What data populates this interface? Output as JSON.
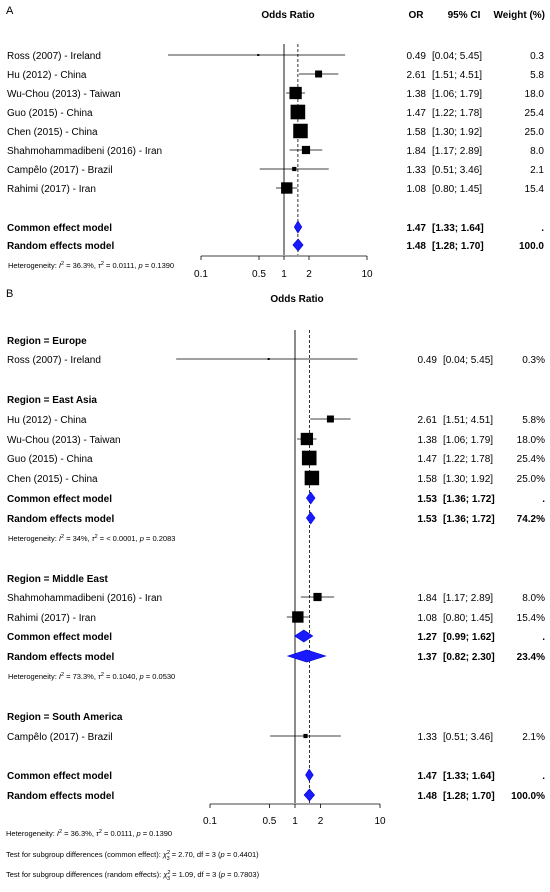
{
  "panel_a": {
    "letter": "A",
    "axis_title": "Odds Ratio",
    "col_headers": [
      "OR",
      "95% CI",
      "Weight (%)"
    ],
    "heterogeneity": [
      "Heterogeneity: ",
      "I",
      "2",
      " = 36.3%, ",
      "τ",
      "2",
      " = 0.0111, ",
      "p",
      " = 0.1390"
    ]
  },
  "panel_b": {
    "letter": "B",
    "axis_title": "Odds Ratio",
    "heterogeneity": [
      "Heterogeneity: ",
      "I",
      "2",
      " = 36.3%, ",
      "τ",
      "2",
      " = 0.0111, ",
      "p",
      " = 0.1390"
    ],
    "subgroup_tests": [
      [
        "Test for subgroup differences (common effect): ",
        "χ",
        "2",
        "3",
        " = 2.70, df = 3 (",
        "p",
        " = 0.4401)"
      ],
      [
        "Test for subgroup differences (random effects): ",
        "χ",
        "2",
        "3",
        " = 1.09, df = 3 (",
        "p",
        " = 0.7803)"
      ]
    ]
  },
  "chart_data": [
    {
      "type": "forest",
      "panel": "A",
      "xlabel": "Odds Ratio",
      "x_scale": "log",
      "xlim": [
        0.1,
        10
      ],
      "x_ticks": [
        "0.1",
        "0.5",
        "1",
        "2",
        "10"
      ],
      "reference_line": 1,
      "pooled_reference_line": 1.47,
      "studies": [
        {
          "label": "Ross (2007) - Ireland",
          "or": 0.49,
          "lower": 0.04,
          "upper": 5.45,
          "or_text": "0.49",
          "ci_text": "[0.04; 5.45]",
          "weight": 0.3,
          "weight_text": "0.3"
        },
        {
          "label": "Hu (2012) - China",
          "or": 2.61,
          "lower": 1.51,
          "upper": 4.51,
          "or_text": "2.61",
          "ci_text": "[1.51; 4.51]",
          "weight": 5.8,
          "weight_text": "5.8"
        },
        {
          "label": "Wu-Chou (2013) - Taiwan",
          "or": 1.38,
          "lower": 1.06,
          "upper": 1.79,
          "or_text": "1.38",
          "ci_text": "[1.06; 1.79]",
          "weight": 18.0,
          "weight_text": "18.0"
        },
        {
          "label": "Guo (2015) - China",
          "or": 1.47,
          "lower": 1.22,
          "upper": 1.78,
          "or_text": "1.47",
          "ci_text": "[1.22; 1.78]",
          "weight": 25.4,
          "weight_text": "25.4"
        },
        {
          "label": "Chen (2015) - China",
          "or": 1.58,
          "lower": 1.3,
          "upper": 1.92,
          "or_text": "1.58",
          "ci_text": "[1.30; 1.92]",
          "weight": 25.0,
          "weight_text": "25.0"
        },
        {
          "label": "Shahmohammadibeni (2016) - Iran",
          "or": 1.84,
          "lower": 1.17,
          "upper": 2.89,
          "or_text": "1.84",
          "ci_text": "[1.17; 2.89]",
          "weight": 8.0,
          "weight_text": "8.0"
        },
        {
          "label": "Campêlo (2017) - Brazil",
          "or": 1.33,
          "lower": 0.51,
          "upper": 3.46,
          "or_text": "1.33",
          "ci_text": "[0.51; 3.46]",
          "weight": 2.1,
          "weight_text": "2.1"
        },
        {
          "label": "Rahimi (2017) - Iran",
          "or": 1.08,
          "lower": 0.8,
          "upper": 1.45,
          "or_text": "1.08",
          "ci_text": "[0.80; 1.45]",
          "weight": 15.4,
          "weight_text": "15.4"
        }
      ],
      "summaries": [
        {
          "label": "Common effect model",
          "or": 1.47,
          "lower": 1.33,
          "upper": 1.64,
          "or_text": "1.47",
          "ci_text": "[1.33; 1.64]",
          "weight_text": "."
        },
        {
          "label": "Random effects model",
          "or": 1.48,
          "lower": 1.28,
          "upper": 1.7,
          "or_text": "1.48",
          "ci_text": "[1.28; 1.70]",
          "weight_text": "100.0"
        }
      ]
    },
    {
      "type": "forest",
      "panel": "B",
      "xlabel": "Odds Ratio",
      "x_scale": "log",
      "xlim": [
        0.1,
        10
      ],
      "x_ticks": [
        "0.1",
        "0.5",
        "1",
        "2",
        "10"
      ],
      "reference_line": 1,
      "pooled_reference_line": 1.48,
      "subgroups": [
        {
          "label": "Region = Europe",
          "studies": [
            {
              "label": "Ross (2007) - Ireland",
              "or": 0.49,
              "lower": 0.04,
              "upper": 5.45,
              "or_text": "0.49",
              "ci_text": "[0.04; 5.45]",
              "weight": 0.3,
              "weight_text": "0.3%"
            }
          ],
          "summaries": [],
          "heterogeneity": null
        },
        {
          "label": "Region = East Asia",
          "studies": [
            {
              "label": "Hu (2012) - China",
              "or": 2.61,
              "lower": 1.51,
              "upper": 4.51,
              "or_text": "2.61",
              "ci_text": "[1.51; 4.51]",
              "weight": 5.8,
              "weight_text": "5.8%"
            },
            {
              "label": "Wu-Chou (2013) - Taiwan",
              "or": 1.38,
              "lower": 1.06,
              "upper": 1.79,
              "or_text": "1.38",
              "ci_text": "[1.06; 1.79]",
              "weight": 18.0,
              "weight_text": "18.0%"
            },
            {
              "label": "Guo (2015) - China",
              "or": 1.47,
              "lower": 1.22,
              "upper": 1.78,
              "or_text": "1.47",
              "ci_text": "[1.22; 1.78]",
              "weight": 25.4,
              "weight_text": "25.4%"
            },
            {
              "label": "Chen (2015) - China",
              "or": 1.58,
              "lower": 1.3,
              "upper": 1.92,
              "or_text": "1.58",
              "ci_text": "[1.30; 1.92]",
              "weight": 25.0,
              "weight_text": "25.0%"
            }
          ],
          "summaries": [
            {
              "label": "Common effect model",
              "or": 1.53,
              "lower": 1.36,
              "upper": 1.72,
              "or_text": "1.53",
              "ci_text": "[1.36; 1.72]",
              "weight_text": "."
            },
            {
              "label": "Random effects model",
              "or": 1.53,
              "lower": 1.36,
              "upper": 1.72,
              "or_text": "1.53",
              "ci_text": "[1.36; 1.72]",
              "weight_text": "74.2%"
            }
          ],
          "heterogeneity": [
            "Heterogeneity: ",
            "I",
            "2",
            " = 34%, ",
            "τ",
            "2",
            " = < 0.0001, ",
            "p",
            " = 0.2083"
          ]
        },
        {
          "label": "Region = Middle East",
          "studies": [
            {
              "label": "Shahmohammadibeni (2016) - Iran",
              "or": 1.84,
              "lower": 1.17,
              "upper": 2.89,
              "or_text": "1.84",
              "ci_text": "[1.17; 2.89]",
              "weight": 8.0,
              "weight_text": "8.0%"
            },
            {
              "label": "Rahimi (2017) - Iran",
              "or": 1.08,
              "lower": 0.8,
              "upper": 1.45,
              "or_text": "1.08",
              "ci_text": "[0.80; 1.45]",
              "weight": 15.4,
              "weight_text": "15.4%"
            }
          ],
          "summaries": [
            {
              "label": "Common effect model",
              "or": 1.27,
              "lower": 0.99,
              "upper": 1.62,
              "or_text": "1.27",
              "ci_text": "[0.99; 1.62]",
              "weight_text": "."
            },
            {
              "label": "Random effects model",
              "or": 1.37,
              "lower": 0.82,
              "upper": 2.3,
              "or_text": "1.37",
              "ci_text": "[0.82; 2.30]",
              "weight_text": "23.4%"
            }
          ],
          "heterogeneity": [
            "Heterogeneity: ",
            "I",
            "2",
            " = 73.3%, ",
            "τ",
            "2",
            " = 0.1040, ",
            "p",
            " = 0.0530"
          ]
        },
        {
          "label": "Region = South America",
          "studies": [
            {
              "label": "Campêlo (2017) - Brazil",
              "or": 1.33,
              "lower": 0.51,
              "upper": 3.46,
              "or_text": "1.33",
              "ci_text": "[0.51; 3.46]",
              "weight": 2.1,
              "weight_text": "2.1%"
            }
          ],
          "summaries": [],
          "heterogeneity": null
        }
      ],
      "overall": [
        {
          "label": "Common effect model",
          "or": 1.47,
          "lower": 1.33,
          "upper": 1.64,
          "or_text": "1.47",
          "ci_text": "[1.33; 1.64]",
          "weight_text": "."
        },
        {
          "label": "Random effects model",
          "or": 1.48,
          "lower": 1.28,
          "upper": 1.7,
          "or_text": "1.48",
          "ci_text": "[1.28; 1.70]",
          "weight_text": "100.0%"
        }
      ]
    }
  ],
  "colors": {
    "diamond_fill": "#1a1aff",
    "diamond_stroke": "#0000cc",
    "marker": "#000000",
    "line": "#000000"
  }
}
